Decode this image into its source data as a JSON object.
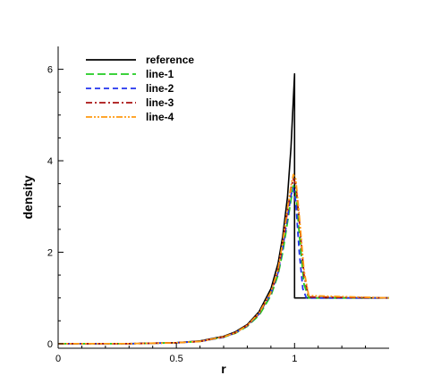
{
  "chart_data": {
    "type": "line",
    "xlabel": "r",
    "ylabel": "density",
    "xlim": [
      0,
      1.4
    ],
    "ylim": [
      -0.1,
      6.5
    ],
    "x_ticks": [
      0,
      0.5,
      1
    ],
    "x_tick_labels": [
      "0",
      "0.5",
      "1"
    ],
    "y_ticks": [
      0,
      2,
      4,
      6
    ],
    "y_tick_labels": [
      "0",
      "2",
      "4",
      "6"
    ],
    "grid": false,
    "legend_position": "top-left",
    "series": [
      {
        "name": "reference",
        "color": "#000000",
        "dash": "solid",
        "x": [
          0,
          0.3,
          0.5,
          0.6,
          0.7,
          0.75,
          0.8,
          0.85,
          0.9,
          0.93,
          0.95,
          0.97,
          0.985,
          1.0,
          1.0,
          1.4
        ],
        "y": [
          0,
          0,
          0.02,
          0.06,
          0.16,
          0.26,
          0.42,
          0.7,
          1.2,
          1.75,
          2.35,
          3.2,
          4.3,
          5.9,
          1.0,
          1.0
        ]
      },
      {
        "name": "line-1",
        "color": "#22cc22",
        "dash": "long-dash",
        "x": [
          0,
          0.3,
          0.5,
          0.6,
          0.7,
          0.75,
          0.8,
          0.85,
          0.9,
          0.93,
          0.95,
          0.97,
          0.985,
          0.995,
          1.005,
          1.02,
          1.04,
          1.06,
          1.4
        ],
        "y": [
          0,
          0,
          0.02,
          0.05,
          0.14,
          0.23,
          0.38,
          0.62,
          1.05,
          1.5,
          2.0,
          2.65,
          3.15,
          3.45,
          3.35,
          2.4,
          1.3,
          1.0,
          1.0
        ]
      },
      {
        "name": "line-2",
        "color": "#2233ee",
        "dash": "dash",
        "x": [
          0,
          0.3,
          0.5,
          0.6,
          0.7,
          0.75,
          0.8,
          0.85,
          0.9,
          0.93,
          0.95,
          0.97,
          0.985,
          0.995,
          1.005,
          1.02,
          1.035,
          1.05,
          1.4
        ],
        "y": [
          0,
          0,
          0.02,
          0.05,
          0.14,
          0.24,
          0.39,
          0.65,
          1.1,
          1.55,
          2.1,
          2.75,
          3.25,
          3.4,
          3.1,
          2.0,
          1.2,
          1.0,
          1.0
        ]
      },
      {
        "name": "line-3",
        "color": "#aa1111",
        "dash": "dash-dot",
        "x": [
          0,
          0.3,
          0.5,
          0.6,
          0.7,
          0.75,
          0.8,
          0.85,
          0.9,
          0.93,
          0.95,
          0.97,
          0.985,
          0.995,
          1.005,
          1.02,
          1.04,
          1.06,
          1.4
        ],
        "y": [
          0,
          0,
          0.02,
          0.05,
          0.15,
          0.24,
          0.4,
          0.66,
          1.12,
          1.6,
          2.2,
          2.9,
          3.4,
          3.6,
          3.5,
          2.7,
          1.5,
          1.02,
          1.0
        ]
      },
      {
        "name": "line-4",
        "color": "#ff9911",
        "dash": "dash-dot-dot",
        "x": [
          0,
          0.3,
          0.5,
          0.6,
          0.7,
          0.75,
          0.8,
          0.85,
          0.9,
          0.93,
          0.95,
          0.97,
          0.985,
          0.995,
          1.005,
          1.02,
          1.04,
          1.06,
          1.4
        ],
        "y": [
          0,
          0,
          0.02,
          0.05,
          0.15,
          0.24,
          0.4,
          0.67,
          1.13,
          1.62,
          2.22,
          2.95,
          3.45,
          3.7,
          3.6,
          2.8,
          1.6,
          1.05,
          1.0
        ]
      }
    ]
  }
}
